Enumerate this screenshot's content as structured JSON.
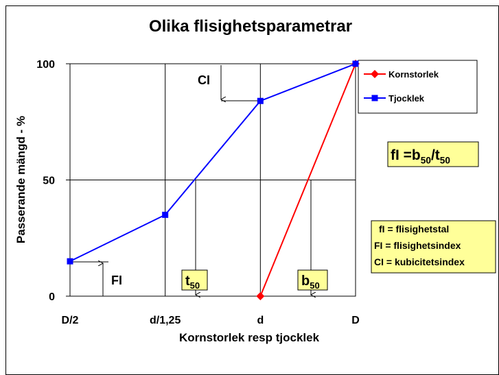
{
  "chart_data": {
    "type": "line",
    "title": "Olika flisighetsparametrar",
    "xlabel": "Kornstorlek resp tjocklek",
    "ylabel": "Passerande mängd - %",
    "categories": [
      "D/2",
      "d/1,25",
      "d",
      "D"
    ],
    "series": [
      {
        "name": "Kornstorlek",
        "color": "#ff0000",
        "marker": "diamond",
        "values": [
          null,
          null,
          0,
          100
        ]
      },
      {
        "name": "Tjocklek",
        "color": "#0000ff",
        "marker": "square",
        "values": [
          15,
          35,
          84,
          100
        ]
      }
    ],
    "ylim": [
      0,
      100
    ],
    "yticks": [
      0,
      50,
      100
    ],
    "grid": true,
    "legend": "top-right",
    "annotations": {
      "ci": "CI",
      "fi": "FI",
      "t50": [
        {
          "text": "t"
        },
        {
          "text": "50",
          "sub": true
        }
      ],
      "b50": [
        {
          "text": "b"
        },
        {
          "text": "50",
          "sub": true
        }
      ],
      "formula": [
        {
          "text": "fI =b"
        },
        {
          "text": "50",
          "sub": true
        },
        {
          "text": "/t"
        },
        {
          "text": "50",
          "sub": true
        }
      ],
      "info": [
        "fI = flisighetstal",
        "FI = flisighetsindex",
        "CI = kubicitetsindex"
      ]
    }
  }
}
